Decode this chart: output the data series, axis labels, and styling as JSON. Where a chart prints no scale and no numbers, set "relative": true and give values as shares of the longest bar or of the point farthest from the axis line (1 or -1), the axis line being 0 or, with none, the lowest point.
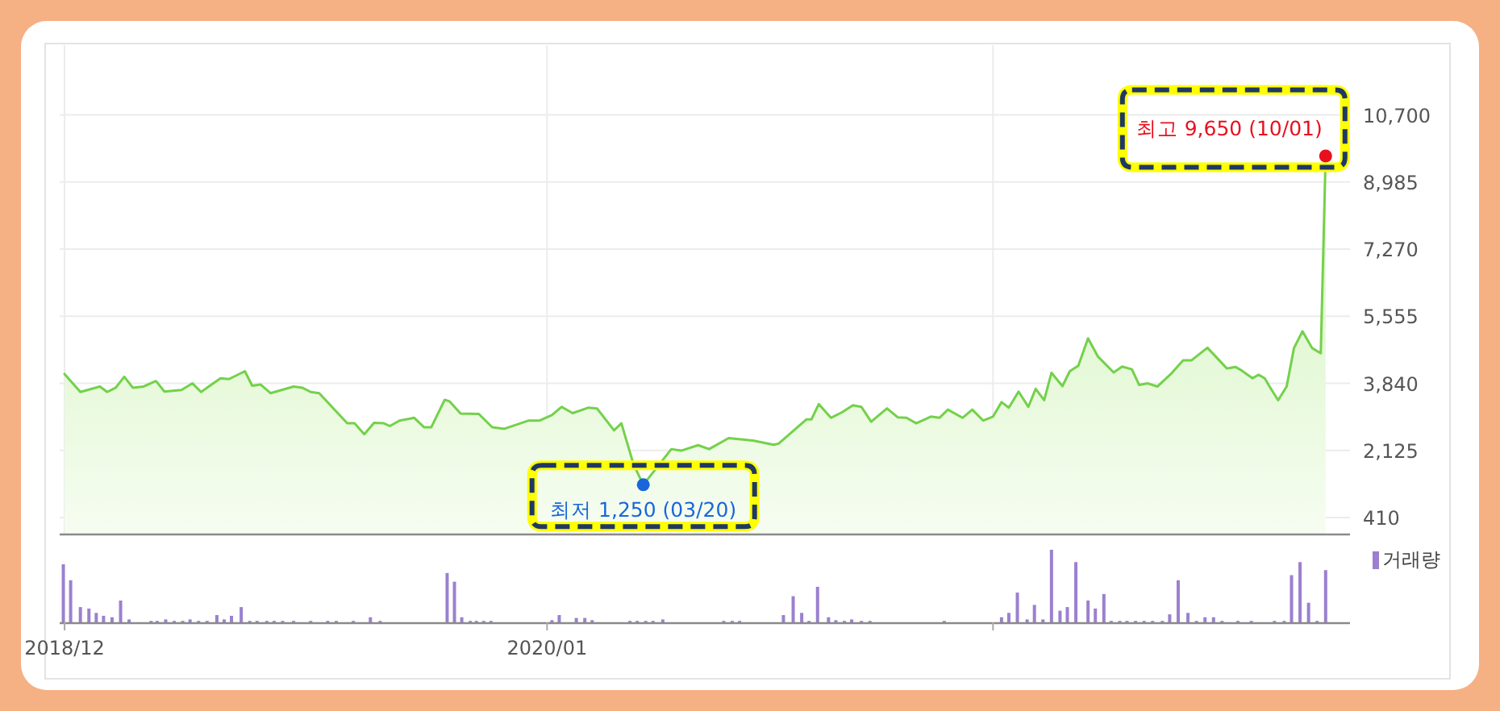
{
  "chart_data": [
    {
      "type": "area",
      "xlim": [
        "2018-11-27",
        "2021-10-21"
      ],
      "xticks": [
        {
          "value": "2018-12-01",
          "label": null
        },
        {
          "value": "2020-01-01",
          "label": null
        },
        {
          "value": "2021-01-01",
          "label": null
        }
      ],
      "ylim": [
        0,
        12400
      ],
      "yticks": [
        410,
        {
          "value": 2125,
          "label": "2,125"
        },
        {
          "value": 3840,
          "label": "3,840"
        },
        {
          "value": 5555,
          "label": "5,555"
        },
        {
          "value": 7270,
          "label": "7,270"
        },
        {
          "value": 8985,
          "label": "8,985"
        },
        {
          "value": 10700,
          "label": "10,700"
        }
      ],
      "tick_labels": "y",
      "grid": true,
      "x": [
        "2018-12-01",
        "2018-12-14",
        "2018-12-30",
        "2019-01-05",
        "2019-01-12",
        "2019-01-19",
        "2019-01-26",
        "2019-02-04",
        "2019-02-14",
        "2019-02-21",
        "2019-03-07",
        "2019-03-16",
        "2019-03-23",
        "2019-04-08",
        "2019-04-15",
        "2019-04-28",
        "2019-05-04",
        "2019-05-11",
        "2019-05-19",
        "2019-06-07",
        "2019-06-14",
        "2019-06-21",
        "2019-06-28",
        "2019-07-21",
        "2019-07-27",
        "2019-08-04",
        "2019-08-12",
        "2019-08-20",
        "2019-08-25",
        "2019-09-02",
        "2019-09-14",
        "2019-09-22",
        "2019-09-28",
        "2019-10-09",
        "2019-10-13",
        "2019-10-22",
        "2019-11-06",
        "2019-11-17",
        "2019-11-27",
        "2019-12-17",
        "2019-12-26",
        "2020-01-05",
        "2020-01-13",
        "2020-01-22",
        "2020-02-04",
        "2020-02-11",
        "2020-02-25",
        "2020-03-02",
        "2020-03-12",
        "2020-03-20",
        "2020-04-12",
        "2020-04-20",
        "2020-05-04",
        "2020-05-13",
        "2020-05-29",
        "2020-06-18",
        "2020-07-05",
        "2020-07-09",
        "2020-08-01",
        "2020-08-05",
        "2020-08-11",
        "2020-08-21",
        "2020-08-30",
        "2020-09-08",
        "2020-09-15",
        "2020-09-23",
        "2020-10-06",
        "2020-10-15",
        "2020-10-22",
        "2020-10-30",
        "2020-11-11",
        "2020-11-18",
        "2020-11-25",
        "2020-12-07",
        "2020-12-15",
        "2020-12-24",
        "2021-01-01",
        "2021-01-08",
        "2021-01-14",
        "2021-01-22",
        "2021-01-30",
        "2021-02-05",
        "2021-02-12",
        "2021-02-18",
        "2021-02-27",
        "2021-03-05",
        "2021-03-12",
        "2021-03-20",
        "2021-03-28",
        "2021-04-10",
        "2021-04-17",
        "2021-04-25",
        "2021-05-01",
        "2021-05-08",
        "2021-05-16",
        "2021-05-27",
        "2021-06-06",
        "2021-06-13",
        "2021-06-26",
        "2021-07-12",
        "2021-07-19",
        "2021-07-23",
        "2021-08-02",
        "2021-08-07",
        "2021-08-12",
        "2021-08-16",
        "2021-08-23",
        "2021-08-30",
        "2021-09-05",
        "2021-09-12",
        "2021-09-20",
        "2021-09-27",
        "2021-10-01"
      ],
      "series": [
        {
          "color": "#73d14a",
          "values": [
            4080,
            3620,
            3760,
            3620,
            3730,
            4010,
            3730,
            3760,
            3900,
            3630,
            3670,
            3840,
            3620,
            3970,
            3950,
            4150,
            3780,
            3810,
            3590,
            3760,
            3730,
            3620,
            3590,
            2820,
            2820,
            2540,
            2830,
            2820,
            2750,
            2890,
            2960,
            2720,
            2720,
            3420,
            3380,
            3070,
            3060,
            2720,
            2680,
            2890,
            2890,
            3030,
            3240,
            3080,
            3220,
            3200,
            2640,
            2820,
            1770,
            1250,
            2160,
            2120,
            2260,
            2160,
            2440,
            2380,
            2270,
            2300,
            2920,
            2920,
            3310,
            2960,
            3100,
            3280,
            3240,
            2860,
            3200,
            2970,
            2960,
            2820,
            2990,
            2960,
            3170,
            2960,
            3170,
            2890,
            2990,
            3360,
            3220,
            3630,
            3240,
            3700,
            3410,
            4110,
            3770,
            4150,
            4290,
            4990,
            4530,
            4120,
            4270,
            4200,
            3800,
            3840,
            3760,
            4080,
            4430,
            4430,
            4750,
            4220,
            4260,
            4190,
            3970,
            4060,
            3970,
            3760,
            3410,
            3760,
            4740,
            5170,
            4740,
            4610,
            9650
          ]
        }
      ],
      "annotations": [
        {
          "text": "최저 1,250 (03/20)",
          "x": "2020-03-20",
          "y": 1250
        },
        {
          "text": "최고 9,650 (10/01)",
          "x": "2021-10-01",
          "y": 9650
        }
      ]
    },
    {
      "type": "bar",
      "relative": true,
      "xlim": [
        "2018-11-27",
        "2021-10-21"
      ],
      "xticks": [
        {
          "value": "2018-12-01",
          "label": "2018/12"
        },
        {
          "value": "2020-01-01",
          "label": "2020/01"
        },
        {
          "value": "2021-01-01",
          "label": null
        }
      ],
      "tick_labels": "x",
      "legend": "top right",
      "x": [
        "2018-11-30",
        "2018-12-06",
        "2018-12-14",
        "2018-12-21",
        "2018-12-27",
        "2019-01-02",
        "2019-01-09",
        "2019-01-16",
        "2019-01-23",
        "2019-02-10",
        "2019-02-15",
        "2019-02-22",
        "2019-03-01",
        "2019-03-08",
        "2019-03-14",
        "2019-03-21",
        "2019-03-28",
        "2019-04-05",
        "2019-04-11",
        "2019-04-17",
        "2019-04-25",
        "2019-05-02",
        "2019-05-08",
        "2019-05-16",
        "2019-05-22",
        "2019-05-29",
        "2019-06-07",
        "2019-06-21",
        "2019-07-05",
        "2019-07-12",
        "2019-07-26",
        "2019-08-09",
        "2019-08-17",
        "2019-10-11",
        "2019-10-17",
        "2019-10-23",
        "2019-10-30",
        "2019-11-04",
        "2019-11-10",
        "2019-11-16",
        "2020-01-05",
        "2020-01-11",
        "2020-01-25",
        "2020-02-01",
        "2020-02-07",
        "2020-03-09",
        "2020-03-15",
        "2020-03-22",
        "2020-03-28",
        "2020-04-05",
        "2020-05-25",
        "2020-06-01",
        "2020-06-07",
        "2020-07-13",
        "2020-07-21",
        "2020-07-28",
        "2020-08-03",
        "2020-08-10",
        "2020-08-19",
        "2020-08-25",
        "2020-09-01",
        "2020-09-07",
        "2020-09-15",
        "2020-09-22",
        "2020-11-22",
        "2021-01-08",
        "2021-01-14",
        "2021-01-21",
        "2021-01-29",
        "2021-02-04",
        "2021-02-11",
        "2021-02-18",
        "2021-02-25",
        "2021-03-03",
        "2021-03-10",
        "2021-03-20",
        "2021-03-26",
        "2021-04-02",
        "2021-04-08",
        "2021-04-15",
        "2021-04-21",
        "2021-04-28",
        "2021-05-05",
        "2021-05-12",
        "2021-05-20",
        "2021-05-26",
        "2021-06-02",
        "2021-06-10",
        "2021-06-17",
        "2021-06-24",
        "2021-07-01",
        "2021-07-08",
        "2021-07-21",
        "2021-08-01",
        "2021-08-20",
        "2021-08-28",
        "2021-09-03",
        "2021-09-10",
        "2021-09-17",
        "2021-09-24",
        "2021-10-01"
      ],
      "series": [
        {
          "name": "거래량",
          "color": "#9b80cf",
          "values": [
            0.8,
            0.58,
            0.21,
            0.19,
            0.13,
            0.09,
            0.07,
            0.3,
            0.04,
            0.02,
            0.02,
            0.04,
            0.02,
            0.02,
            0.04,
            0.02,
            0.02,
            0.1,
            0.04,
            0.09,
            0.21,
            0.02,
            0.02,
            0.02,
            0.02,
            0.02,
            0.02,
            0.02,
            0.02,
            0.02,
            0.02,
            0.07,
            0.02,
            0.68,
            0.56,
            0.07,
            0.02,
            0.02,
            0.02,
            0.02,
            0.03,
            0.1,
            0.06,
            0.06,
            0.03,
            0.02,
            0.02,
            0.02,
            0.02,
            0.04,
            0.02,
            0.02,
            0.02,
            0.1,
            0.36,
            0.13,
            0.02,
            0.49,
            0.07,
            0.03,
            0.02,
            0.04,
            0.02,
            0.02,
            0.02,
            0.07,
            0.13,
            0.41,
            0.04,
            0.24,
            0.04,
            1,
            0.16,
            0.21,
            0.83,
            0.3,
            0.19,
            0.39,
            0.02,
            0.02,
            0.02,
            0.02,
            0.02,
            0.02,
            0.02,
            0.11,
            0.58,
            0.13,
            0.02,
            0.07,
            0.07,
            0.02,
            0.02,
            0.02,
            0.02,
            0.02,
            0.65,
            0.83,
            0.27,
            0.02,
            0.72
          ]
        }
      ]
    }
  ]
}
